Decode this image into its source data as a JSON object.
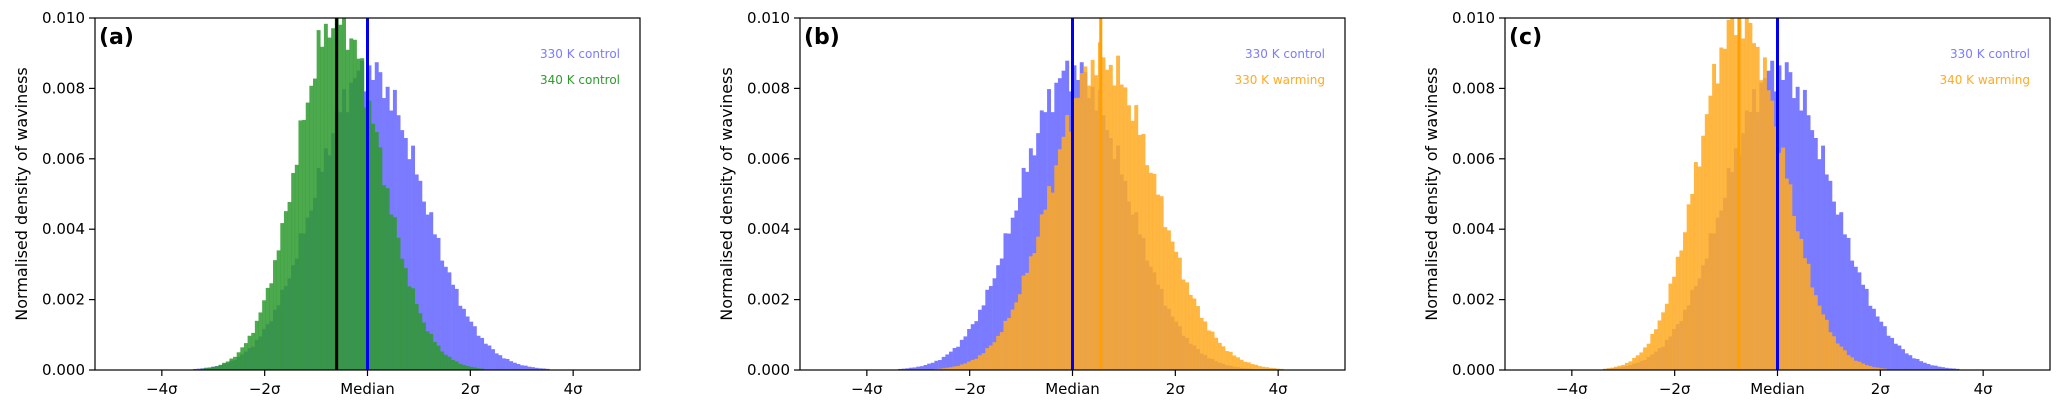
{
  "colors": {
    "control": "#7b7bff",
    "green": "#2e9a2e",
    "orange": "#ffaa22",
    "blue_line": "#0000ee",
    "black_line": "#000000",
    "green_line": "#1a8a1a",
    "orange_line": "#ff9f00"
  },
  "chart_data": [
    {
      "type": "histogram",
      "panel_label": "(a)",
      "ylabel": "Normalised density of waviness",
      "xlim": [
        -5.3,
        5.3
      ],
      "ylim": [
        0,
        0.01
      ],
      "yticks": [
        "0.000",
        "0.002",
        "0.004",
        "0.006",
        "0.008",
        "0.010"
      ],
      "xticks": [
        {
          "value": -4,
          "label": "−4σ"
        },
        {
          "value": -2,
          "label": "−2σ"
        },
        {
          "value": 0,
          "label": "Median"
        },
        {
          "value": 2,
          "label": "2σ"
        },
        {
          "value": 4,
          "label": "4σ"
        }
      ],
      "series": [
        {
          "name": "330 K control",
          "color": "#7b7bff",
          "center": 0.0,
          "peak": 0.0085,
          "sigma_left": 1.0,
          "sigma_right": 1.05,
          "median_line": 0.0,
          "line_color": "#0000ee"
        },
        {
          "name": "340 K control",
          "color": "#2e9a2e",
          "center": -0.6,
          "peak": 0.01,
          "sigma_left": 0.78,
          "sigma_right": 0.85,
          "median_line": -0.6,
          "line_color": "#000000"
        }
      ]
    },
    {
      "type": "histogram",
      "panel_label": "(b)",
      "ylabel": "Normalised density of waviness",
      "xlim": [
        -5.3,
        5.3
      ],
      "ylim": [
        0,
        0.01
      ],
      "yticks": [
        "0.000",
        "0.002",
        "0.004",
        "0.006",
        "0.008",
        "0.010"
      ],
      "xticks": [
        {
          "value": -4,
          "label": "−4σ"
        },
        {
          "value": -2,
          "label": "−2σ"
        },
        {
          "value": 0,
          "label": "Median"
        },
        {
          "value": 2,
          "label": "2σ"
        },
        {
          "value": 4,
          "label": "4σ"
        }
      ],
      "series": [
        {
          "name": "330 K control",
          "color": "#7b7bff",
          "center": 0.0,
          "peak": 0.0085,
          "sigma_left": 1.0,
          "sigma_right": 1.05,
          "median_line": 0.0,
          "line_color": "#0000ee"
        },
        {
          "name": "330 K warming",
          "color": "#ffaa22",
          "center": 0.55,
          "peak": 0.0088,
          "sigma_left": 0.95,
          "sigma_right": 1.05,
          "median_line": 0.55,
          "line_color": "#ff9f00"
        }
      ]
    },
    {
      "type": "histogram",
      "panel_label": "(c)",
      "ylabel": "Normalised density of waviness",
      "xlim": [
        -5.3,
        5.3
      ],
      "ylim": [
        0,
        0.01
      ],
      "yticks": [
        "0.000",
        "0.002",
        "0.004",
        "0.006",
        "0.008",
        "0.010"
      ],
      "xticks": [
        {
          "value": -4,
          "label": "−4σ"
        },
        {
          "value": -2,
          "label": "−2σ"
        },
        {
          "value": 0,
          "label": "Median"
        },
        {
          "value": 2,
          "label": "2σ"
        },
        {
          "value": 4,
          "label": "4σ"
        }
      ],
      "series": [
        {
          "name": "330 K control",
          "color": "#7b7bff",
          "center": 0.0,
          "peak": 0.0085,
          "sigma_left": 1.0,
          "sigma_right": 1.05,
          "median_line": 0.0,
          "line_color": "#0000ee"
        },
        {
          "name": "340 K warming",
          "color": "#ffaa22",
          "center": -0.75,
          "peak": 0.01,
          "sigma_left": 0.78,
          "sigma_right": 0.85,
          "median_line": -0.75,
          "line_color": "#ff9f00"
        }
      ]
    }
  ]
}
